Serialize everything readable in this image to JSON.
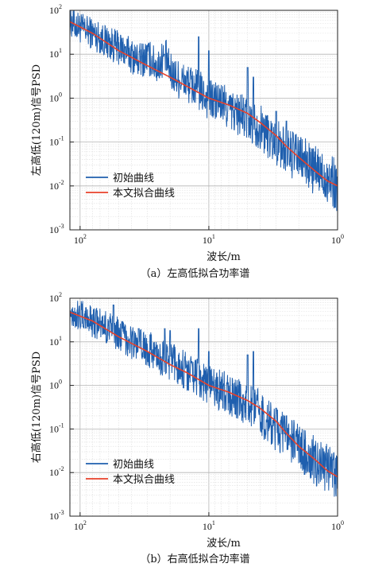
{
  "chart_data": [
    {
      "type": "line",
      "caption": "（a）左高低拟合功率谱",
      "xlabel": "波长/m",
      "ylabel": "左高低(120m)信号PSD",
      "x_scale": "log-reversed",
      "y_scale": "log",
      "xlim": [
        120,
        1
      ],
      "ylim": [
        0.001,
        100
      ],
      "grid": true,
      "legend_position": "lower-left",
      "x_ticks": [
        {
          "base": "10",
          "exp": "2"
        },
        {
          "base": "10",
          "exp": "1"
        },
        {
          "base": "10",
          "exp": "0"
        }
      ],
      "y_ticks": [
        {
          "base": "10",
          "exp": "2"
        },
        {
          "base": "10",
          "exp": "1"
        },
        {
          "base": "10",
          "exp": "0"
        },
        {
          "base": "10",
          "exp": "-1"
        },
        {
          "base": "10",
          "exp": "-2"
        },
        {
          "base": "10",
          "exp": "-3"
        }
      ],
      "series": [
        {
          "name": "初始曲线",
          "color": "#1f5fae",
          "x": [
            120,
            100,
            80,
            60,
            45,
            35,
            30,
            25,
            22,
            20,
            18,
            15,
            13,
            11,
            10,
            8,
            7,
            6,
            5,
            4,
            3.5,
            3,
            2.5,
            2,
            1.7,
            1.5,
            1.3,
            1.1,
            1
          ],
          "y": [
            55,
            40,
            30,
            18,
            12,
            7,
            9,
            5,
            10,
            4,
            3,
            2.2,
            1.8,
            1.2,
            0.9,
            0.8,
            0.55,
            0.45,
            0.33,
            0.22,
            0.15,
            0.1,
            0.06,
            0.045,
            0.03,
            0.022,
            0.018,
            0.013,
            0.01
          ]
        },
        {
          "name": "本文拟合曲线",
          "color": "#e8412a",
          "x": [
            120,
            80,
            50,
            30,
            20,
            15,
            10,
            7,
            5,
            4,
            3,
            2.5,
            2,
            1.5,
            1.2,
            1
          ],
          "y": [
            55,
            30,
            12,
            5.5,
            3,
            1.9,
            1.0,
            0.7,
            0.45,
            0.28,
            0.14,
            0.08,
            0.045,
            0.022,
            0.013,
            0.01
          ]
        }
      ],
      "peaks": [
        [
          22,
          10
        ],
        [
          12,
          25
        ],
        [
          10,
          12
        ],
        [
          5,
          5
        ],
        [
          4.5,
          3
        ],
        [
          3,
          0.5
        ],
        [
          2.5,
          0.3
        ]
      ]
    },
    {
      "type": "line",
      "caption": "（b）右高低拟合功率谱",
      "xlabel": "波长/m",
      "ylabel": "右高低(120m)信号PSD",
      "x_scale": "log-reversed",
      "y_scale": "log",
      "xlim": [
        120,
        1
      ],
      "ylim": [
        0.001,
        100
      ],
      "grid": true,
      "legend_position": "lower-left",
      "x_ticks": [
        {
          "base": "10",
          "exp": "2"
        },
        {
          "base": "10",
          "exp": "1"
        },
        {
          "base": "10",
          "exp": "0"
        }
      ],
      "y_ticks": [
        {
          "base": "10",
          "exp": "2"
        },
        {
          "base": "10",
          "exp": "1"
        },
        {
          "base": "10",
          "exp": "0"
        },
        {
          "base": "10",
          "exp": "-1"
        },
        {
          "base": "10",
          "exp": "-2"
        },
        {
          "base": "10",
          "exp": "-3"
        }
      ],
      "series": [
        {
          "name": "初始曲线",
          "color": "#1f5fae",
          "x": [
            120,
            100,
            80,
            60,
            45,
            35,
            30,
            25,
            22,
            20,
            18,
            15,
            13,
            11,
            10,
            8,
            7,
            6,
            5,
            4,
            3.5,
            3,
            2.5,
            2,
            1.7,
            1.5,
            1.3,
            1.1,
            1
          ],
          "y": [
            50,
            40,
            30,
            20,
            13,
            8,
            7,
            5,
            4,
            3.5,
            3,
            2.2,
            1.8,
            1.3,
            1.0,
            0.8,
            0.6,
            0.45,
            0.35,
            0.25,
            0.15,
            0.1,
            0.06,
            0.04,
            0.025,
            0.018,
            0.013,
            0.01,
            0.008
          ]
        },
        {
          "name": "本文拟合曲线",
          "color": "#e8412a",
          "x": [
            120,
            80,
            50,
            30,
            20,
            15,
            10,
            7,
            5,
            4,
            3,
            2.5,
            2,
            1.5,
            1.2,
            1
          ],
          "y": [
            48,
            30,
            13,
            6,
            3,
            2,
            1.0,
            0.7,
            0.45,
            0.3,
            0.15,
            0.08,
            0.04,
            0.02,
            0.011,
            0.008
          ]
        }
      ],
      "peaks": [
        [
          55,
          70
        ],
        [
          35,
          20
        ],
        [
          22,
          20
        ],
        [
          20,
          18
        ],
        [
          12,
          20
        ],
        [
          10,
          6
        ],
        [
          5,
          5
        ],
        [
          4.5,
          6
        ],
        [
          3,
          0.3
        ],
        [
          2.5,
          0.2
        ]
      ]
    }
  ]
}
